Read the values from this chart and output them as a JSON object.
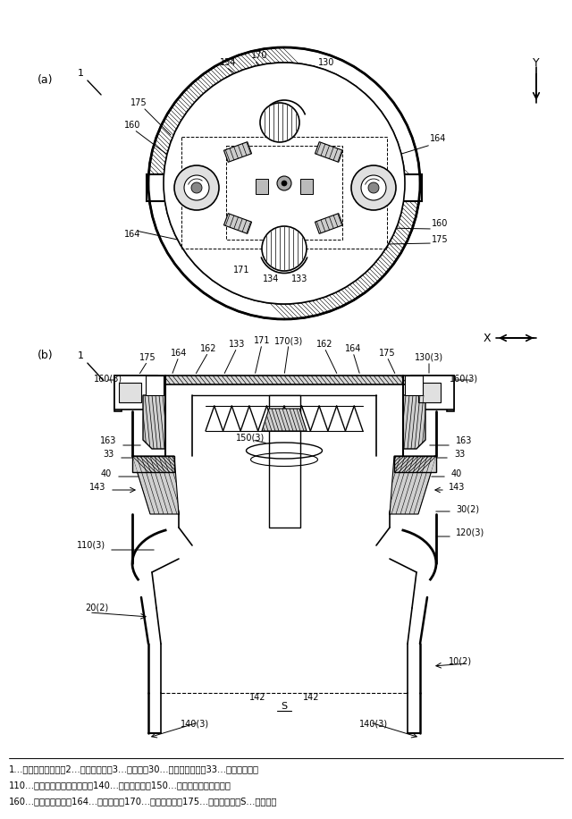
{
  "bg": "#ffffff",
  "lc": "#000000",
  "fig_w": 6.4,
  "fig_h": 9.16,
  "legend": [
    "1…携帯飲料容器　　2…容器本体　　3…栓体　　30…飲み口部材　　33…逆テーパー部",
    "110…栓体側パッキン部材　　140…係止部材　　150…圧縮コイルスプリング",
    "160…解除ボタン　　164…突起部　　170…規制部材　　175…規制溝部　　S…貯留空間"
  ]
}
